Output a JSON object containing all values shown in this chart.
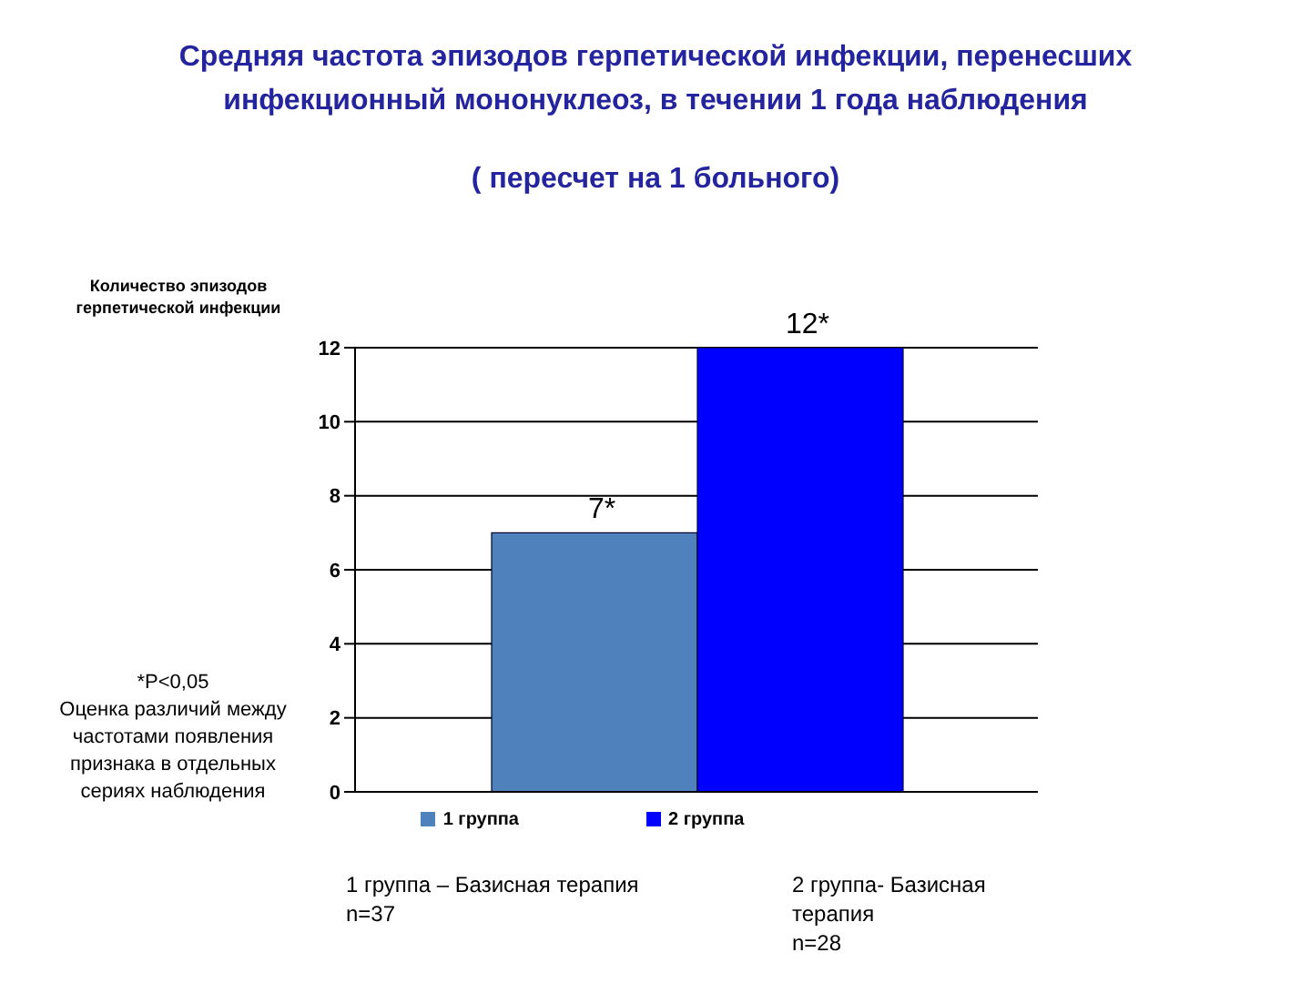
{
  "chart_data": {
    "type": "bar",
    "title": "Средняя частота эпизодов герпетической инфекции, перенесших инфекционный мононуклеоз, в течении 1 года наблюдения",
    "subtitle": "( пересчет на 1 больного)",
    "ylabel": "Количество эпизодов герпетической инфекции",
    "categories": [
      null
    ],
    "series": [
      {
        "name": "1 группа",
        "color": "#4f81bd",
        "values": [
          7
        ],
        "value_labels": [
          "7*"
        ]
      },
      {
        "name": "2 группа",
        "color": "#0000ff",
        "values": [
          12
        ],
        "value_labels": [
          "12*"
        ]
      }
    ],
    "ylim": [
      0,
      12
    ],
    "yticks": [
      0,
      2,
      4,
      6,
      8,
      10,
      12
    ],
    "grid": "y",
    "legend": "bottom",
    "annotations": [
      "*P<0,05\nОценка различий между частотами появления признака в отдельных сериях наблюдения",
      "1 группа – Базисная терапия\nn=37",
      "2 группа- Базисная терапия\nn=28"
    ]
  }
}
